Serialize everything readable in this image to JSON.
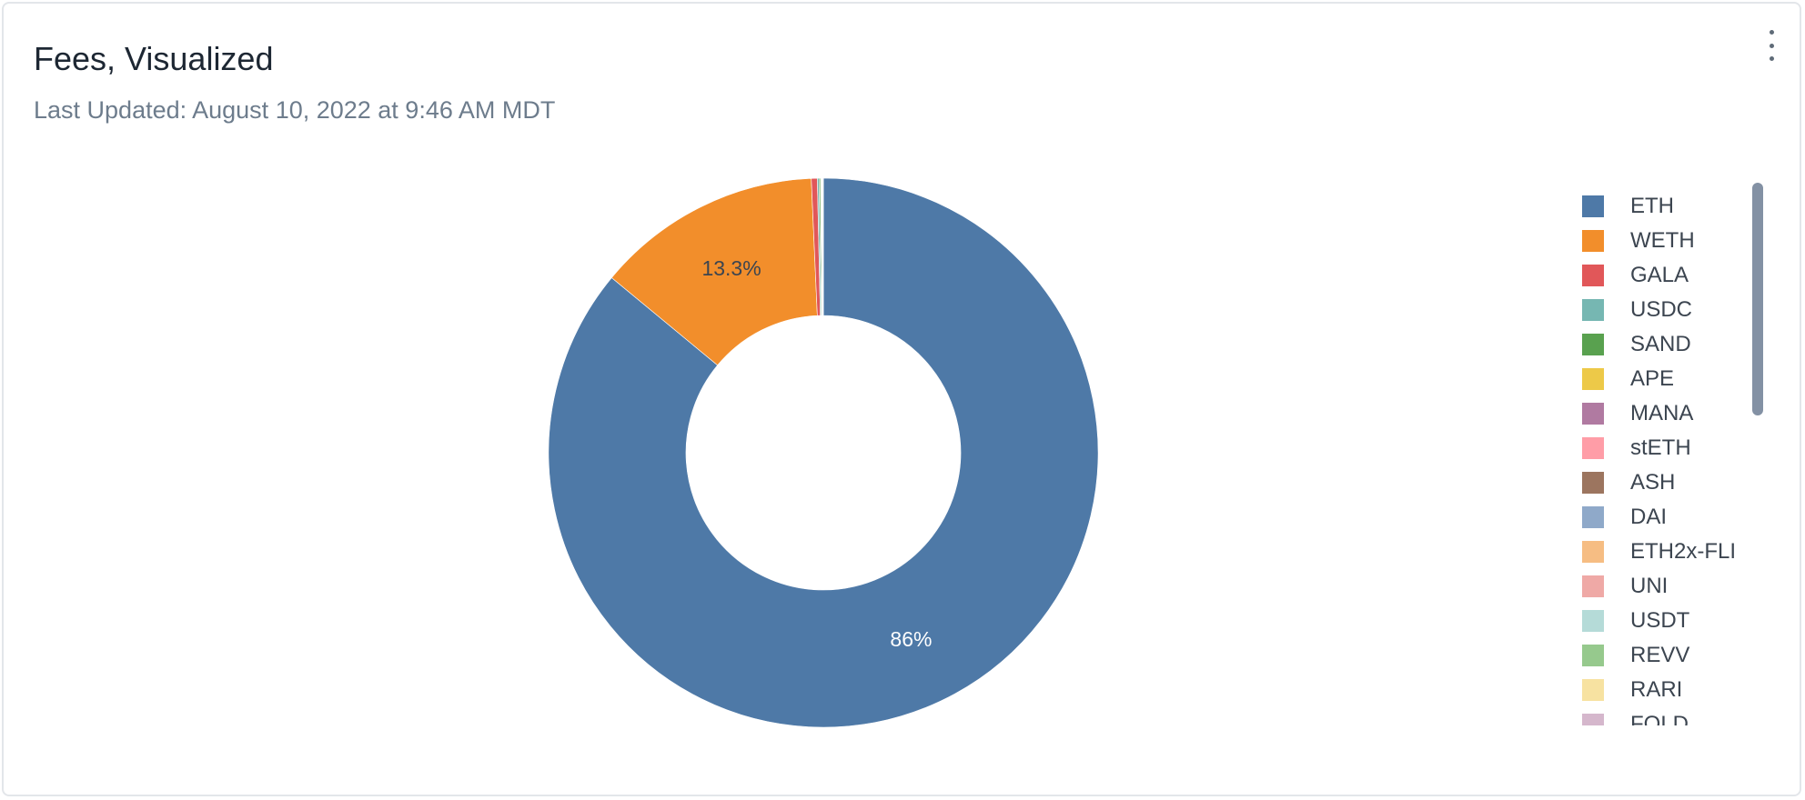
{
  "header": {
    "title": "Fees, Visualized",
    "subtitle": "Last Updated: August 10, 2022 at 9:46 AM MDT"
  },
  "chart_data": {
    "type": "pie",
    "variant": "donut",
    "categories": [
      "ETH",
      "WETH",
      "GALA",
      "USDC",
      "SAND",
      "APE",
      "MANA",
      "stETH",
      "ASH",
      "DAI",
      "ETH2x-FLI",
      "UNI",
      "USDT",
      "REVV",
      "RARI",
      "FOLD"
    ],
    "values": [
      86.0,
      13.3,
      0.35,
      0.1,
      0.08,
      0.04,
      0.03,
      0.02,
      0.02,
      0.01,
      0.01,
      0.01,
      0.01,
      0.01,
      0.005,
      0.005
    ],
    "colors": [
      "#4e79a7",
      "#f28e2b",
      "#e15759",
      "#76b7b2",
      "#59a14f",
      "#edc948",
      "#b07aa1",
      "#ff9da7",
      "#9c755f",
      "#8fa9c9",
      "#f6bd83",
      "#efa9a6",
      "#b5dbd8",
      "#96c98d",
      "#f7e2a1",
      "#d5b7cc"
    ],
    "data_labels": [
      {
        "category": "ETH",
        "text": "86%",
        "color": "#ffffff"
      },
      {
        "category": "WETH",
        "text": "13.3%",
        "color": "#3c4550"
      }
    ],
    "legend_position": "right"
  }
}
